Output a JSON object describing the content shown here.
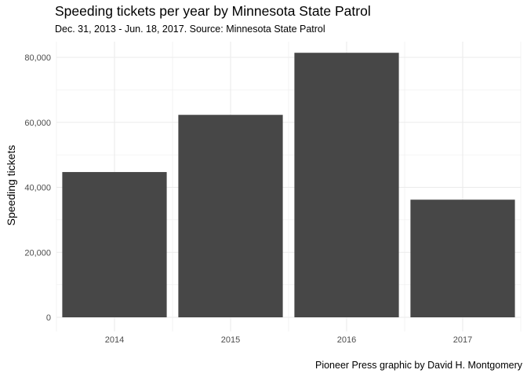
{
  "chart_data": {
    "type": "bar",
    "title": "Speeding tickets per year by Minnesota State Patrol",
    "subtitle": "Dec. 31, 2013 - Jun. 18, 2017. Source: Minnesota State Patrol",
    "caption": "Pioneer Press graphic by David H. Montgomery",
    "xlabel": "",
    "ylabel": "Speeding tickets",
    "categories": [
      "2014",
      "2015",
      "2016",
      "2017"
    ],
    "values": [
      44700,
      62300,
      81400,
      36200
    ],
    "ylim": [
      0,
      85000
    ],
    "yticks": [
      0,
      20000,
      40000,
      60000,
      80000
    ],
    "ytick_labels": [
      "0",
      "20,000",
      "40,000",
      "60,000",
      "80,000"
    ],
    "grid": true,
    "bar_color": "#474747",
    "grid_color": "#ebebeb"
  }
}
